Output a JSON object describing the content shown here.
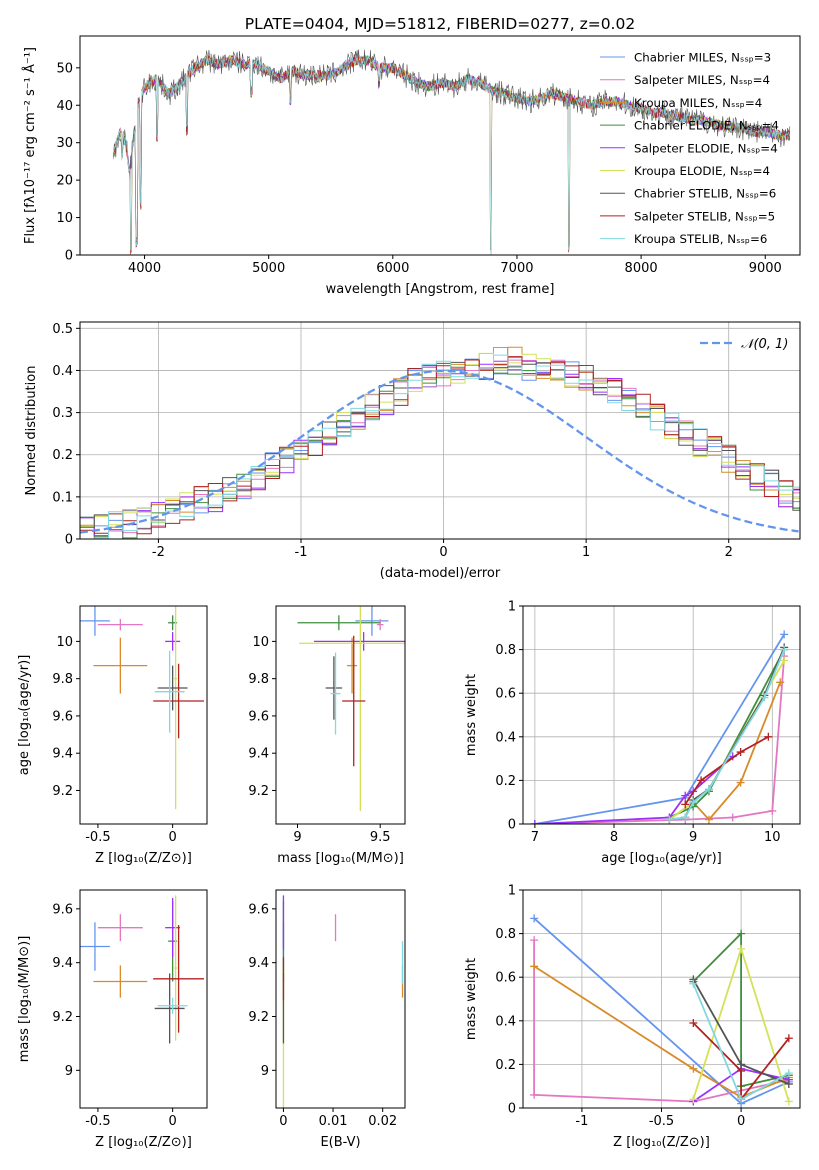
{
  "title": "PLATE=0404, MJD=51812, FIBERID=0277, z=0.02",
  "colors": [
    "#6495ed",
    "#e377c2",
    "#d98b29",
    "#3f8f3f",
    "#9b30ff",
    "#d4e157",
    "#555555",
    "#b22222",
    "#80d8e0"
  ],
  "chart_data": [
    {
      "id": "spectrum",
      "type": "line",
      "xlabel": "wavelength [Angstrom, rest frame]",
      "ylabel": "Flux [fλ10⁻¹⁷ erg cm⁻² s⁻¹ Å⁻¹]",
      "xlim": [
        3480,
        9280
      ],
      "ylim": [
        0,
        58.5
      ],
      "xticks": [
        4000,
        5000,
        6000,
        7000,
        8000,
        9000
      ],
      "yticks": [
        0,
        10,
        20,
        30,
        40,
        50
      ],
      "grid": false,
      "legend_position": "upper right",
      "series": [
        {
          "name": "Chabrier MILES, Nₛₛₚ=3"
        },
        {
          "name": "Salpeter MILES, Nₛₛₚ=4"
        },
        {
          "name": "Kroupa MILES, Nₛₛₚ=4"
        },
        {
          "name": "Chabrier ELODIE, Nₛₛₚ=4"
        },
        {
          "name": "Salpeter ELODIE, Nₛₛₚ=4"
        },
        {
          "name": "Kroupa ELODIE, Nₛₛₚ=4"
        },
        {
          "name": "Chabrier STELIB, Nₛₛₚ=6"
        },
        {
          "name": "Salpeter STELIB, Nₛₛₚ=5"
        },
        {
          "name": "Kroupa STELIB, Nₛₛₚ=6"
        }
      ],
      "spectrum": {
        "x": [
          3750,
          3800,
          3850,
          3880,
          3900,
          3950,
          4000,
          4100,
          4200,
          4300,
          4400,
          4500,
          4600,
          4700,
          4800,
          4900,
          5000,
          5100,
          5200,
          5300,
          5400,
          5500,
          5600,
          5700,
          5800,
          5900,
          6000,
          6100,
          6200,
          6300,
          6400,
          6500,
          6600,
          6700,
          6800,
          6900,
          7000,
          7100,
          7200,
          7300,
          7400,
          7500,
          7600,
          7700,
          7800,
          7900,
          8000,
          8100,
          8200,
          8300,
          8400,
          8500,
          8600,
          8700,
          8800,
          8900,
          9000,
          9100,
          9200
        ],
        "y": [
          27,
          33,
          30,
          22,
          28,
          40,
          45,
          47,
          43,
          46,
          50,
          52,
          51,
          52,
          51,
          51,
          49,
          47,
          49,
          48,
          48,
          48,
          50,
          52,
          52,
          50,
          50,
          48,
          46,
          45,
          46,
          45,
          47,
          46,
          44,
          43,
          42,
          41,
          42,
          43,
          42,
          41,
          40,
          41,
          41,
          40,
          39,
          38,
          38,
          37,
          36,
          36,
          35,
          34,
          34,
          33,
          33,
          32,
          32
        ],
        "dips": [
          [
            3820,
            25
          ],
          [
            3890,
            0
          ],
          [
            3935,
            2
          ],
          [
            3970,
            12
          ],
          [
            4102,
            30
          ],
          [
            4340,
            32
          ],
          [
            4861,
            42
          ],
          [
            5175,
            40
          ],
          [
            5890,
            44
          ],
          [
            6563,
            46
          ],
          [
            6790,
            0
          ],
          [
            7420,
            0
          ],
          [
            7600,
            38
          ]
        ]
      }
    },
    {
      "id": "residuals",
      "type": "histogram",
      "xlabel": "(data-model)/error",
      "ylabel": "Normed distribution",
      "xlim": [
        -2.55,
        2.5
      ],
      "ylim": [
        0,
        0.515
      ],
      "xticks": [
        -2,
        -1,
        0,
        1,
        2
      ],
      "yticks": [
        0.0,
        0.1,
        0.2,
        0.3,
        0.4,
        0.5
      ],
      "grid": true,
      "legend_position": "upper right",
      "curve": {
        "name": "𝒩(0, 1)",
        "mean": 0,
        "sigma": 1,
        "color": "#6495ed"
      },
      "bin_width": 0.1,
      "hist_shape": [
        0.02,
        0.025,
        0.03,
        0.035,
        0.045,
        0.055,
        0.065,
        0.075,
        0.09,
        0.1,
        0.115,
        0.13,
        0.15,
        0.17,
        0.19,
        0.21,
        0.23,
        0.25,
        0.27,
        0.29,
        0.31,
        0.33,
        0.35,
        0.37,
        0.38,
        0.39,
        0.4,
        0.41,
        0.41,
        0.42,
        0.42,
        0.41,
        0.41,
        0.4,
        0.39,
        0.38,
        0.37,
        0.35,
        0.33,
        0.31,
        0.29,
        0.27,
        0.25,
        0.23,
        0.21,
        0.19,
        0.17,
        0.15,
        0.13,
        0.11,
        0.09
      ]
    },
    {
      "id": "age-vs-Z",
      "type": "errorbar",
      "xlabel": "Z [log₁₀(Z/Z⊙)]",
      "ylabel": "age  [log₁₀(age/yr)]",
      "xlim": [
        -0.62,
        0.23
      ],
      "ylim": [
        9.02,
        10.19
      ],
      "xticks": [
        -0.5,
        0.0
      ],
      "yticks": [
        9.2,
        9.4,
        9.6,
        9.8,
        10.0
      ],
      "points": [
        {
          "x": -0.52,
          "xerr": 0.1,
          "y": 10.11,
          "yerr": 0.08
        },
        {
          "x": -0.35,
          "xerr": 0.15,
          "y": 10.09,
          "yerr": 0.03
        },
        {
          "x": -0.35,
          "xerr": 0.18,
          "y": 9.87,
          "yerr": 0.15
        },
        {
          "x": 0.0,
          "xerr": 0.03,
          "y": 10.1,
          "yerr": 0.04
        },
        {
          "x": 0.0,
          "xerr": 0.05,
          "y": 10.0,
          "yerr": 0.05
        },
        {
          "x": 0.02,
          "xerr": 0.01,
          "y": 9.8,
          "yerr": 0.7
        },
        {
          "x": 0.0,
          "xerr": 0.1,
          "y": 9.75,
          "yerr": 0.12
        },
        {
          "x": 0.04,
          "xerr": 0.17,
          "y": 9.68,
          "yerr": 0.2
        },
        {
          "x": -0.02,
          "xerr": 0.1,
          "y": 9.73,
          "yerr": 0.22
        }
      ]
    },
    {
      "id": "age-vs-mass",
      "type": "errorbar",
      "xlabel": "mass [log₁₀(M/M⊙)]",
      "ylabel": "",
      "xlim": [
        8.87,
        9.65
      ],
      "ylim": [
        9.02,
        10.19
      ],
      "xticks": [
        9.0,
        9.5
      ],
      "yticks": [
        9.2,
        9.4,
        9.6,
        9.8,
        10.0
      ],
      "points": [
        {
          "x": 9.45,
          "xerr": 0.1,
          "y": 10.11,
          "yerr": 0.08
        },
        {
          "x": 9.5,
          "xerr": 0.02,
          "y": 10.09,
          "yerr": 0.03
        },
        {
          "x": 9.33,
          "xerr": 0.03,
          "y": 9.87,
          "yerr": 0.15
        },
        {
          "x": 9.25,
          "xerr": 0.25,
          "y": 10.1,
          "yerr": 0.04
        },
        {
          "x": 9.4,
          "xerr": 0.3,
          "y": 10.0,
          "yerr": 0.05
        },
        {
          "x": 9.38,
          "xerr": 0.37,
          "y": 9.99,
          "yerr": 0.9
        },
        {
          "x": 9.22,
          "xerr": 0.05,
          "y": 9.75,
          "yerr": 0.17
        },
        {
          "x": 9.34,
          "xerr": 0.07,
          "y": 9.68,
          "yerr": 0.35
        },
        {
          "x": 9.23,
          "xerr": 0.03,
          "y": 9.72,
          "yerr": 0.22
        }
      ]
    },
    {
      "id": "massweight-vs-age",
      "type": "line",
      "xlabel": "age  [log₁₀(age/yr)]",
      "ylabel": "mass weight",
      "xlim": [
        6.85,
        10.35
      ],
      "ylim": [
        0.0,
        1.0
      ],
      "xticks": [
        7,
        8,
        9,
        10
      ],
      "yticks": [
        0.0,
        0.2,
        0.4,
        0.6,
        0.8,
        1.0
      ],
      "grid": true,
      "series": [
        {
          "x": [
            7.0,
            8.9,
            10.15
          ],
          "y": [
            0.0,
            0.12,
            0.87
          ]
        },
        {
          "x": [
            7.0,
            8.9,
            9.5,
            10.0,
            10.15
          ],
          "y": [
            0.0,
            0.02,
            0.03,
            0.06,
            0.77
          ]
        },
        {
          "x": [
            8.7,
            9.0,
            9.2,
            9.6,
            10.1
          ],
          "y": [
            0.02,
            0.1,
            0.02,
            0.19,
            0.65
          ]
        },
        {
          "x": [
            8.7,
            9.0,
            9.2,
            10.15
          ],
          "y": [
            0.03,
            0.08,
            0.15,
            0.8
          ]
        },
        {
          "x": [
            7.0,
            8.7,
            8.9,
            9.0,
            9.5
          ],
          "y": [
            0.0,
            0.03,
            0.13,
            0.15,
            0.31
          ]
        },
        {
          "x": [
            8.7,
            9.0,
            9.2,
            10.15
          ],
          "y": [
            0.02,
            0.1,
            0.16,
            0.75
          ]
        },
        {
          "x": [
            8.7,
            8.9,
            9.0,
            9.2,
            9.9,
            10.15
          ],
          "y": [
            0.02,
            0.03,
            0.11,
            0.16,
            0.59,
            0.81
          ]
        },
        {
          "x": [
            8.9,
            9.1,
            9.6,
            9.95
          ],
          "y": [
            0.09,
            0.2,
            0.33,
            0.4
          ]
        },
        {
          "x": [
            8.7,
            8.9,
            9.0,
            9.2,
            9.9,
            10.15
          ],
          "y": [
            0.02,
            0.03,
            0.1,
            0.16,
            0.58,
            0.8
          ]
        }
      ]
    },
    {
      "id": "mass-vs-Z",
      "type": "errorbar",
      "xlabel": "Z [log₁₀(Z/Z⊙)]",
      "ylabel": "mass [log₁₀(M/M⊙)]",
      "xlim": [
        -0.62,
        0.23
      ],
      "ylim": [
        8.86,
        9.67
      ],
      "xticks": [
        -0.5,
        0.0
      ],
      "yticks": [
        9.0,
        9.2,
        9.4,
        9.6
      ],
      "points": [
        {
          "x": -0.52,
          "xerr": 0.1,
          "y": 9.46,
          "yerr": 0.09
        },
        {
          "x": -0.35,
          "xerr": 0.15,
          "y": 9.53,
          "yerr": 0.05
        },
        {
          "x": -0.35,
          "xerr": 0.18,
          "y": 9.33,
          "yerr": 0.06
        },
        {
          "x": 0.0,
          "xerr": 0.03,
          "y": 9.48,
          "yerr": 0.15
        },
        {
          "x": 0.0,
          "xerr": 0.05,
          "y": 9.53,
          "yerr": 0.11
        },
        {
          "x": 0.02,
          "xerr": 0.01,
          "y": 9.38,
          "yerr": 0.27
        },
        {
          "x": -0.02,
          "xerr": 0.1,
          "y": 9.23,
          "yerr": 0.13
        },
        {
          "x": 0.04,
          "xerr": 0.17,
          "y": 9.34,
          "yerr": 0.2
        },
        {
          "x": 0.0,
          "xerr": 0.1,
          "y": 9.24,
          "yerr": 0.03
        }
      ]
    },
    {
      "id": "mass-vs-ebv",
      "type": "errorbar",
      "xlabel": "E(B-V)",
      "ylabel": "",
      "xlim": [
        -0.0015,
        0.0245
      ],
      "ylim": [
        8.86,
        9.67
      ],
      "xticks": [
        0.0,
        0.01,
        0.02
      ],
      "yticks": [
        9.0,
        9.2,
        9.4,
        9.6
      ],
      "points": [
        {
          "x": 0.0,
          "xerr": 0,
          "y": 9.46,
          "yerr": 0.09
        },
        {
          "x": 0.0105,
          "xerr": 0,
          "y": 9.53,
          "yerr": 0.05
        },
        {
          "x": 0.024,
          "xerr": 0,
          "y": 9.33,
          "yerr": 0.06
        },
        {
          "x": 0.0,
          "xerr": 0,
          "y": 9.48,
          "yerr": 0.15
        },
        {
          "x": 0.0,
          "xerr": 0,
          "y": 9.55,
          "yerr": 0.1
        },
        {
          "x": 0.0,
          "xerr": 0,
          "y": 9.13,
          "yerr": 0.27
        },
        {
          "x": 0.0,
          "xerr": 0,
          "y": 9.23,
          "yerr": 0.13
        },
        {
          "x": 0.0,
          "xerr": 0,
          "y": 9.34,
          "yerr": 0.08
        },
        {
          "x": 0.024,
          "xerr": 0,
          "y": 9.4,
          "yerr": 0.08
        }
      ]
    },
    {
      "id": "massweight-vs-Z",
      "type": "line",
      "xlabel": "Z [log₁₀(Z/Z⊙)]",
      "ylabel": "mass weight",
      "xlim": [
        -1.37,
        0.37
      ],
      "ylim": [
        0.0,
        1.0
      ],
      "xticks": [
        -1.0,
        -0.5,
        0.0
      ],
      "yticks": [
        0.0,
        0.2,
        0.4,
        0.6,
        0.8,
        1.0
      ],
      "grid": true,
      "series": [
        {
          "x": [
            -1.3,
            0.0,
            0.3
          ],
          "y": [
            0.87,
            0.02,
            0.12
          ]
        },
        {
          "x": [
            -1.3,
            -1.3,
            -0.3,
            0.3,
            0.3
          ],
          "y": [
            0.77,
            0.06,
            0.03,
            0.13,
            0.11
          ]
        },
        {
          "x": [
            -1.3,
            -0.3,
            0.0,
            0.3
          ],
          "y": [
            0.65,
            0.18,
            0.05,
            0.14
          ]
        },
        {
          "x": [
            -0.3,
            0.0,
            0.0,
            0.3
          ],
          "y": [
            0.58,
            0.8,
            0.1,
            0.15
          ]
        },
        {
          "x": [
            -0.3,
            0.0,
            0.3
          ],
          "y": [
            0.03,
            0.18,
            0.13
          ]
        },
        {
          "x": [
            -0.3,
            0.0,
            0.3
          ],
          "y": [
            0.04,
            0.73,
            0.03
          ]
        },
        {
          "x": [
            -0.3,
            0.0,
            0.3
          ],
          "y": [
            0.59,
            0.2,
            0.11
          ]
        },
        {
          "x": [
            -0.3,
            0.0,
            0.0,
            0.3
          ],
          "y": [
            0.39,
            0.17,
            0.04,
            0.32
          ]
        },
        {
          "x": [
            -0.3,
            0.0,
            0.3
          ],
          "y": [
            0.57,
            0.04,
            0.16
          ]
        }
      ]
    }
  ]
}
